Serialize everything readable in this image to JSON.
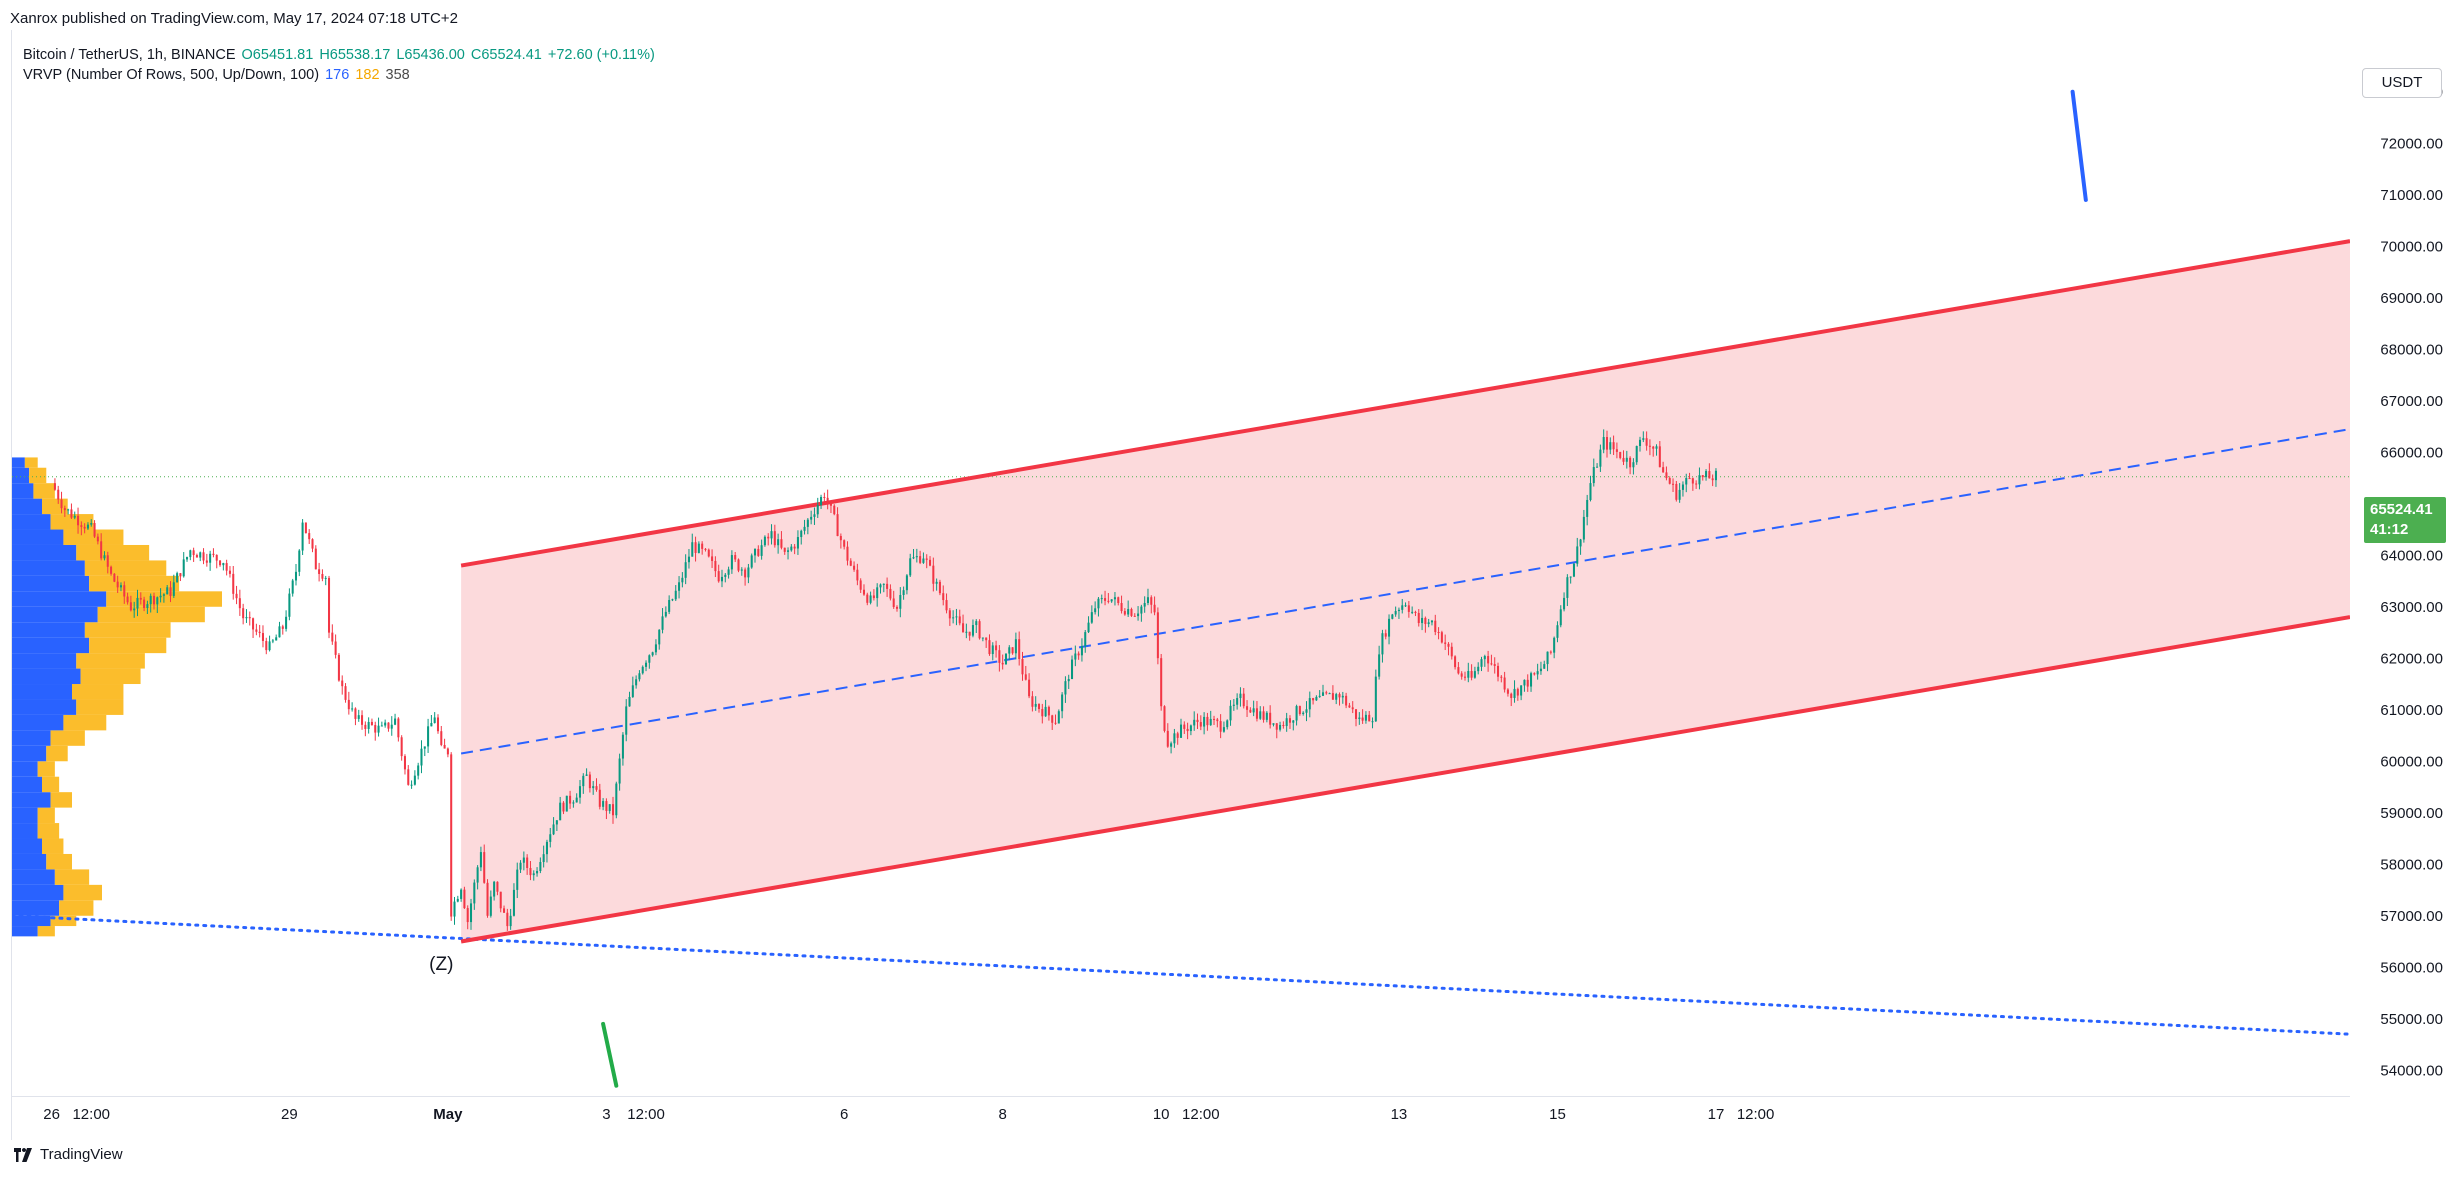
{
  "publish_line": "Xanrox published on TradingView.com, May 17, 2024 07:18 UTC+2",
  "legend": {
    "symbol": "Bitcoin / TetherUS, 1h, BINANCE",
    "open": "O65451.81",
    "high": "H65538.17",
    "low": "L65436.00",
    "close": "C65524.41",
    "change": "+72.60 (+0.11%)",
    "indicator": "VRVP (Number Of Rows, 500, Up/Down, 100)",
    "vol_up": "176",
    "vol_down": "182",
    "vol_total": "358"
  },
  "currency": "USDT",
  "last_price": {
    "price": "65524.41",
    "countdown": "41:12"
  },
  "brand": "TradingView",
  "colors": {
    "up": "#089981",
    "down": "#f23645",
    "channel_line": "#f23645",
    "channel_fill": "#fbd3d6",
    "midline": "#2962ff",
    "support": "#2962ff",
    "price_tag": "#4caf50",
    "vol_up": "#2962ff",
    "vol_down": "#fbbd2c"
  },
  "chart_data": {
    "type": "candlestick",
    "y_axis_side": "right",
    "ylim": [
      53500,
      74200
    ],
    "y_ticks": [
      "54000.00",
      "55000.00",
      "56000.00",
      "57000.00",
      "58000.00",
      "59000.00",
      "60000.00",
      "61000.00",
      "62000.00",
      "63000.00",
      "64000.00",
      "65000.00",
      "66000.00",
      "67000.00",
      "68000.00",
      "69000.00",
      "70000.00",
      "71000.00",
      "72000.00",
      "73000.00"
    ],
    "x_ticks": [
      {
        "label": "26",
        "t": 0
      },
      {
        "label": "12:00",
        "t": 12
      },
      {
        "label": "29",
        "t": 72
      },
      {
        "label": "May",
        "t": 120
      },
      {
        "label": "3",
        "t": 168
      },
      {
        "label": "12:00",
        "t": 180
      },
      {
        "label": "6",
        "t": 240
      },
      {
        "label": "8",
        "t": 288
      },
      {
        "label": "10",
        "t": 336
      },
      {
        "label": "12:00",
        "t": 348
      },
      {
        "label": "13",
        "t": 408
      },
      {
        "label": "15",
        "t": 456
      },
      {
        "label": "17",
        "t": 504
      },
      {
        "label": "12:00",
        "t": 516
      }
    ],
    "price_path": [
      [
        0,
        65400
      ],
      [
        4,
        64900
      ],
      [
        8,
        64700
      ],
      [
        12,
        64500
      ],
      [
        18,
        63600
      ],
      [
        24,
        63000
      ],
      [
        36,
        63300
      ],
      [
        42,
        64100
      ],
      [
        46,
        64000
      ],
      [
        52,
        63900
      ],
      [
        58,
        62800
      ],
      [
        62,
        62500
      ],
      [
        66,
        62200
      ],
      [
        70,
        62600
      ],
      [
        74,
        63700
      ],
      [
        76,
        64700
      ],
      [
        80,
        63800
      ],
      [
        83,
        63600
      ],
      [
        84,
        62500
      ],
      [
        88,
        61400
      ],
      [
        92,
        60800
      ],
      [
        96,
        60700
      ],
      [
        100,
        60600
      ],
      [
        104,
        60800
      ],
      [
        108,
        59500
      ],
      [
        112,
        60200
      ],
      [
        116,
        60900
      ],
      [
        118,
        60200
      ],
      [
        120,
        60200
      ],
      [
        121,
        57100
      ],
      [
        124,
        57600
      ],
      [
        126,
        56900
      ],
      [
        130,
        58300
      ],
      [
        132,
        57000
      ],
      [
        134,
        57600
      ],
      [
        138,
        56800
      ],
      [
        142,
        58100
      ],
      [
        146,
        57800
      ],
      [
        150,
        58500
      ],
      [
        154,
        59100
      ],
      [
        158,
        59300
      ],
      [
        162,
        59700
      ],
      [
        166,
        59200
      ],
      [
        170,
        59000
      ],
      [
        174,
        61000
      ],
      [
        178,
        61800
      ],
      [
        182,
        62200
      ],
      [
        186,
        62900
      ],
      [
        190,
        63400
      ],
      [
        194,
        64200
      ],
      [
        198,
        64000
      ],
      [
        202,
        63600
      ],
      [
        206,
        63900
      ],
      [
        210,
        63700
      ],
      [
        214,
        64100
      ],
      [
        218,
        64400
      ],
      [
        222,
        64000
      ],
      [
        226,
        64300
      ],
      [
        230,
        64800
      ],
      [
        234,
        65200
      ],
      [
        238,
        64500
      ],
      [
        240,
        64100
      ],
      [
        244,
        63500
      ],
      [
        248,
        63100
      ],
      [
        252,
        63400
      ],
      [
        256,
        63000
      ],
      [
        260,
        63900
      ],
      [
        264,
        64000
      ],
      [
        268,
        63400
      ],
      [
        272,
        62900
      ],
      [
        276,
        62500
      ],
      [
        280,
        62600
      ],
      [
        284,
        62200
      ],
      [
        288,
        61900
      ],
      [
        292,
        62300
      ],
      [
        296,
        61200
      ],
      [
        300,
        61000
      ],
      [
        304,
        60800
      ],
      [
        308,
        61700
      ],
      [
        312,
        62300
      ],
      [
        316,
        63000
      ],
      [
        320,
        63200
      ],
      [
        324,
        63000
      ],
      [
        328,
        62900
      ],
      [
        332,
        63100
      ],
      [
        334,
        62900
      ],
      [
        336,
        61000
      ],
      [
        338,
        60400
      ],
      [
        342,
        60600
      ],
      [
        348,
        60800
      ],
      [
        354,
        60700
      ],
      [
        360,
        61200
      ],
      [
        366,
        60900
      ],
      [
        372,
        60700
      ],
      [
        378,
        61000
      ],
      [
        384,
        61200
      ],
      [
        390,
        61300
      ],
      [
        396,
        60800
      ],
      [
        400,
        60900
      ],
      [
        402,
        62200
      ],
      [
        406,
        62900
      ],
      [
        410,
        63100
      ],
      [
        414,
        62700
      ],
      [
        418,
        62700
      ],
      [
        422,
        62300
      ],
      [
        426,
        61700
      ],
      [
        430,
        61600
      ],
      [
        434,
        62100
      ],
      [
        438,
        61700
      ],
      [
        442,
        61300
      ],
      [
        446,
        61500
      ],
      [
        450,
        61700
      ],
      [
        454,
        62100
      ],
      [
        458,
        63300
      ],
      [
        462,
        64100
      ],
      [
        466,
        65400
      ],
      [
        470,
        66200
      ],
      [
        474,
        66000
      ],
      [
        478,
        65800
      ],
      [
        482,
        66300
      ],
      [
        486,
        66000
      ],
      [
        488,
        65600
      ],
      [
        492,
        65200
      ],
      [
        496,
        65500
      ],
      [
        500,
        65500
      ],
      [
        504,
        65524
      ]
    ],
    "channel": {
      "upper": [
        [
          124,
          63800
        ],
        [
          696,
          70100
        ]
      ],
      "lower": [
        [
          124,
          56500
        ],
        [
          696,
          62800
        ]
      ],
      "mid": [
        [
          124,
          60150
        ],
        [
          696,
          66450
        ]
      ]
    },
    "support_line": [
      [
        -12,
        57000
      ],
      [
        696,
        54700
      ]
    ],
    "last_price_line": 65524.41,
    "annotation": {
      "label": "(Z)",
      "t": 118,
      "price": 55950
    },
    "arrows": [
      {
        "color": "blue",
        "from": [
          612,
          73000
        ],
        "to": [
          616,
          70900
        ]
      },
      {
        "color": "green",
        "from": [
          167,
          54900
        ],
        "to": [
          171,
          53700
        ]
      }
    ],
    "volume_profile": {
      "price_range": [
        56600,
        65900
      ],
      "bins": [
        [
          56600,
          0.3,
          0.2
        ],
        [
          56800,
          0.45,
          0.3
        ],
        [
          57000,
          0.55,
          0.4
        ],
        [
          57300,
          0.6,
          0.45
        ],
        [
          57600,
          0.5,
          0.4
        ],
        [
          57900,
          0.4,
          0.3
        ],
        [
          58200,
          0.35,
          0.25
        ],
        [
          58500,
          0.3,
          0.25
        ],
        [
          58800,
          0.3,
          0.2
        ],
        [
          59100,
          0.45,
          0.25
        ],
        [
          59400,
          0.35,
          0.2
        ],
        [
          59700,
          0.3,
          0.2
        ],
        [
          60000,
          0.4,
          0.25
        ],
        [
          60300,
          0.45,
          0.4
        ],
        [
          60600,
          0.6,
          0.5
        ],
        [
          60900,
          0.75,
          0.55
        ],
        [
          61200,
          0.7,
          0.6
        ],
        [
          61500,
          0.8,
          0.7
        ],
        [
          61800,
          0.75,
          0.8
        ],
        [
          62100,
          0.9,
          0.9
        ],
        [
          62400,
          0.85,
          1.0
        ],
        [
          62700,
          1.0,
          1.25
        ],
        [
          63000,
          1.1,
          1.35
        ],
        [
          63300,
          0.9,
          1.05
        ],
        [
          63600,
          0.85,
          0.95
        ],
        [
          63900,
          0.75,
          0.85
        ],
        [
          64200,
          0.6,
          0.7
        ],
        [
          64500,
          0.45,
          0.5
        ],
        [
          64800,
          0.35,
          0.3
        ],
        [
          65100,
          0.25,
          0.25
        ],
        [
          65400,
          0.2,
          0.2
        ],
        [
          65700,
          0.15,
          0.15
        ]
      ]
    }
  }
}
